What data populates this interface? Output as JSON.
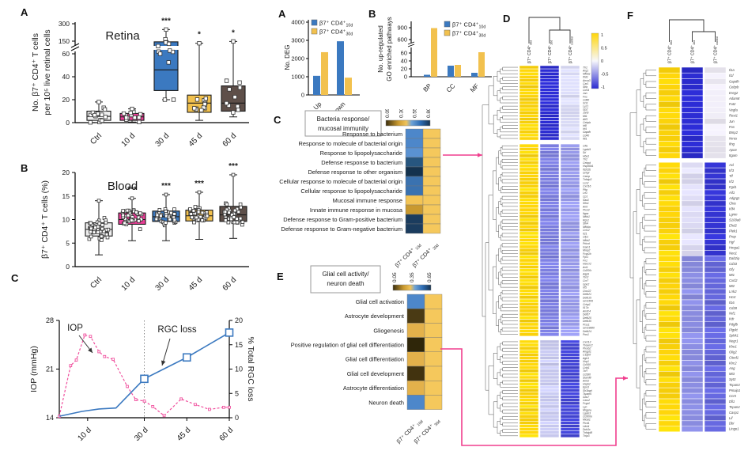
{
  "panel_labels": {
    "left_a": "A",
    "left_b": "B",
    "left_c": "C",
    "mid_a": "A",
    "mid_b": "B",
    "mid_c": "C",
    "mid_e": "E",
    "d": "D",
    "f": "F"
  },
  "colors": {
    "pink": "#ea3f97",
    "blue": "#3b79c0",
    "gold": "#f2c14e",
    "taupe": "#5e4f49",
    "ctrl": "#ededed",
    "heat_yellow": "#ffd60a",
    "connector_pink": "#f03f8e"
  },
  "chart_data": [
    {
      "id": "retina_box",
      "type": "box",
      "title": "Retina",
      "ylabel": [
        "No. β7⁺ CD4⁺ T cells",
        "per 10⁵ live retinal cells"
      ],
      "yticks": [
        0,
        20,
        40,
        60,
        150,
        300
      ],
      "axis_break": [
        60,
        150
      ],
      "categories": [
        "Ctrl",
        "10 d",
        "30 d",
        "45 d",
        "60 d"
      ],
      "significance": [
        "",
        "",
        "***",
        "*",
        "*"
      ],
      "box_colors": [
        "#ededed",
        "#ea3f97",
        "#3b79c0",
        "#f2c14e",
        "#5e4f49"
      ],
      "boxes": [
        {
          "lo": 0,
          "q1": 2,
          "med": 5.5,
          "q3": 10,
          "hi": 18
        },
        {
          "lo": 0.5,
          "q1": 2,
          "med": 5,
          "q3": 8,
          "hi": 12
        },
        {
          "lo": 20,
          "q1": 28,
          "med": 46,
          "q3": 145,
          "hi": 250
        },
        {
          "lo": 2,
          "q1": 9,
          "med": 17,
          "q3": 24,
          "hi": 135
        },
        {
          "lo": 5,
          "q1": 10,
          "med": 17,
          "q3": 32,
          "hi": 148
        }
      ],
      "n_points": [
        14,
        12,
        12,
        11,
        11
      ]
    },
    {
      "id": "blood_box",
      "type": "box",
      "title": "Blood",
      "ylabel": [
        "β7⁺ CD4⁺ T cells (%)"
      ],
      "yticks": [
        0,
        5,
        10,
        15,
        20
      ],
      "categories": [
        "Ctrl",
        "10 d",
        "30 d",
        "45 d",
        "60 d"
      ],
      "significance": [
        "",
        "***",
        "***",
        "***",
        "***"
      ],
      "box_colors": [
        "#ededed",
        "#ea3f97",
        "#3b79c0",
        "#f2c14e",
        "#5e4f49"
      ],
      "boxes": [
        {
          "lo": 2.5,
          "q1": 6.5,
          "med": 7.9,
          "q3": 9.3,
          "hi": 14
        },
        {
          "lo": 5.5,
          "q1": 9,
          "med": 10,
          "q3": 11.4,
          "hi": 14.5
        },
        {
          "lo": 5.5,
          "q1": 9.6,
          "med": 10.6,
          "q3": 11.8,
          "hi": 15.3
        },
        {
          "lo": 5.8,
          "q1": 9.7,
          "med": 10.8,
          "q3": 12,
          "hi": 15.8
        },
        {
          "lo": 6,
          "q1": 9.6,
          "med": 11,
          "q3": 12.8,
          "hi": 19.5
        }
      ],
      "n_points": [
        45,
        40,
        40,
        40,
        40
      ]
    },
    {
      "id": "iop_rgc",
      "type": "line",
      "left_axis": {
        "label": "IOP (mmHg)",
        "ticks": [
          14,
          21,
          28
        ],
        "range": [
          14,
          28
        ]
      },
      "right_axis": {
        "label": "% Total RGC loss",
        "ticks": [
          0,
          5,
          10,
          15,
          20
        ],
        "range": [
          0,
          20
        ]
      },
      "x_range": [
        0,
        60
      ],
      "x_ticks": [
        {
          "day": 10,
          "label": "10 d"
        },
        {
          "day": 30,
          "label": "30 d"
        },
        {
          "day": 45,
          "label": "45 d"
        },
        {
          "day": 60,
          "label": "60 d"
        }
      ],
      "vline_day": 30,
      "annotations": [
        {
          "text": "IOP"
        },
        {
          "text": "RGC loss"
        }
      ],
      "series": [
        {
          "name": "IOP",
          "axis": "left",
          "color": "#f0509e",
          "style": "dashed",
          "points": [
            [
              0,
              14.2
            ],
            [
              4,
              21.5
            ],
            [
              6,
              22.3
            ],
            [
              9,
              25.9
            ],
            [
              11,
              25.7
            ],
            [
              14,
              23.5
            ],
            [
              16,
              22.8
            ],
            [
              19,
              22.4
            ],
            [
              24,
              18.5
            ],
            [
              27,
              16.6
            ],
            [
              30,
              16.4
            ],
            [
              33,
              15.6
            ],
            [
              37,
              14.3
            ],
            [
              43,
              16.7
            ],
            [
              48,
              15.9
            ],
            [
              53,
              15.2
            ],
            [
              58,
              15.5
            ],
            [
              60,
              15.5
            ]
          ]
        },
        {
          "name": "RGC loss",
          "axis": "right",
          "color": "#3b79c0",
          "style": "solid",
          "marker_days": [
            30,
            45,
            60
          ],
          "points": [
            [
              0,
              0.3
            ],
            [
              8,
              1.3
            ],
            [
              14,
              1.8
            ],
            [
              20,
              2.0
            ],
            [
              30,
              8
            ],
            [
              45,
              12.4
            ],
            [
              60,
              17.5
            ]
          ]
        }
      ]
    },
    {
      "id": "deg_bar",
      "type": "bar",
      "ylabel": [
        "No. DEG"
      ],
      "yticks": [
        0,
        1000,
        2000,
        3000,
        4000
      ],
      "categories": [
        "Up",
        "Down"
      ],
      "legend": [
        {
          "color": "#3b79c0",
          "base": "β7⁺ CD4⁺",
          "sub": "10d"
        },
        {
          "color": "#f2c14e",
          "base": "β7⁺ CD4⁺",
          "sub": "30d"
        }
      ],
      "series": [
        {
          "name": "b7 CD4 10d",
          "color": "#3b79c0",
          "values": [
            1050,
            2950
          ]
        },
        {
          "name": "b7 CD4 30d",
          "color": "#f2c14e",
          "values": [
            2350,
            950
          ]
        }
      ]
    },
    {
      "id": "go_bar",
      "type": "bar",
      "ylabel": [
        "No. up-regulated",
        "GO enriched pathways"
      ],
      "yticks": [
        0,
        20,
        40,
        60,
        600,
        900
      ],
      "axis_break": [
        70,
        600
      ],
      "categories": [
        "BP",
        "CC",
        "MF"
      ],
      "legend": [
        {
          "color": "#3b79c0",
          "base": "β7⁺ CD4⁺",
          "sub": "10d"
        },
        {
          "color": "#f2c14e",
          "base": "β7⁺ CD4⁺",
          "sub": "30d"
        }
      ],
      "series": [
        {
          "name": "b7 CD4 10d",
          "color": "#3b79c0",
          "values": [
            5,
            28,
            10
          ]
        },
        {
          "name": "b7 CD4 30d",
          "color": "#f2c14e",
          "values": [
            890,
            30,
            62
          ]
        }
      ]
    },
    {
      "id": "bacteria_heatmap",
      "type": "heatmap",
      "title": [
        "Bacteria response/",
        "mucosal immunity"
      ],
      "colorbar_ticks": [
        "0.05",
        "0.30",
        "0.55",
        "0.80"
      ],
      "columns": [
        {
          "base": "β7⁺ CD4⁺ ",
          "sub": "10d"
        },
        {
          "base": "β7⁺ CD4⁺ ",
          "sub": "30d"
        }
      ],
      "col2_color": "#f5c85c",
      "rows": [
        {
          "label": "Response to bacterium",
          "color": "#4d87ca"
        },
        {
          "label": "Response to molecule of bacterial origin",
          "color": "#4d87ca"
        },
        {
          "label": "Response to lipopolysaccharide",
          "color": "#5a92d2"
        },
        {
          "label": "Defense response to bacterium",
          "color": "#27567f"
        },
        {
          "label": "Defense response to other organism",
          "color": "#14324e"
        },
        {
          "label": "Cellular response to molecule of bacterial origin",
          "color": "#3a72b0"
        },
        {
          "label": "Cellular response to lipopolysaccharide",
          "color": "#3a72b0"
        },
        {
          "label": "Mucosal immune response",
          "color": "#f3c455"
        },
        {
          "label": "Innate immune response in mucosa",
          "color": "#c9992f"
        },
        {
          "label": "Defense response to Gram-positive bacterium",
          "color": "#1b3c5e"
        },
        {
          "label": "Defense response to Gram-negative bacterium",
          "color": "#1b3c5e"
        }
      ]
    },
    {
      "id": "glial_heatmap",
      "type": "heatmap",
      "title": [
        "Glial cell activity/",
        "neuron death"
      ],
      "colorbar_ticks": [
        "0.05",
        "0.35",
        "0.65"
      ],
      "columns": [
        {
          "base": "β7⁺ CD4⁺ ",
          "sub": "10d"
        },
        {
          "base": "β7⁺ CD4⁺ ",
          "sub": "30d"
        }
      ],
      "col2_color": "#f5c85c",
      "rows": [
        {
          "label": "Glial cell activation",
          "color": "#4d87ca"
        },
        {
          "label": "Astrocyte development",
          "color": "#4a3a14"
        },
        {
          "label": "Gliogenesis",
          "color": "#e3b14b"
        },
        {
          "label": "Positive regulation of glial cell differentiation",
          "color": "#2f2609"
        },
        {
          "label": "Glial cell differentiation",
          "color": "#e3b14b"
        },
        {
          "label": "Glial cell development",
          "color": "#42330f"
        },
        {
          "label": "Astrocyte differentiation",
          "color": "#e3b14b"
        },
        {
          "label": "Neuron death",
          "color": "#4d87ca"
        }
      ]
    },
    {
      "id": "heatmap_D",
      "type": "heatmap",
      "columns": [
        {
          "base": "β7⁺ CD4⁺",
          "sub": "30d"
        },
        {
          "base": "β7⁺ CD4⁺",
          "sub": "10d"
        },
        {
          "base": "β7⁺ CD4⁺",
          "sub": "control"
        }
      ],
      "colorbar_ticks": [
        "1",
        "0.5",
        "0",
        "-0.5",
        "-1"
      ],
      "blocks": [
        {
          "colors": [
            "#ffd60a",
            "#2c2cd2",
            "#d7d8f3"
          ],
          "genes": [
            "Tlr1",
            "Arg1",
            "Nfkbiz",
            "Ifrd1",
            "Anxa3",
            "Car1",
            "Stfa",
            "Cd14",
            "Jun",
            "Fos",
            "Cd80",
            "Xcl1",
            "Lyz1",
            "Gp2",
            "Junb",
            "Mt1",
            "Atf3",
            "Cebpb",
            "Irf8",
            "Irf4",
            "Gapdh",
            "Cd40",
            "Ifit1"
          ]
        },
        {
          "colors": [
            "#ffd60a",
            "#7c7ee0",
            "#9799e8"
          ],
          "genes": [
            "Clfa",
            "Lgals9",
            "Srl",
            "Hba1",
            "Tlr2",
            "Cebpd",
            "Hsp90b1",
            "Ifi202b",
            "Grhpr",
            "Camp",
            "Tnfaip3",
            "Lcn2",
            "Cxcl16",
            "Pltp",
            "Lrf1",
            "Cp1",
            "Saa1",
            "Slfn1",
            "Arnt",
            "Plxn3",
            "Itgax",
            "Nfkb1",
            "Rgs1",
            "Stk4",
            "Nfkbia",
            "Ccl12",
            "Il21",
            "Cfp1",
            "Nfkb2",
            "Prkcd",
            "Icam1",
            "Mmp2",
            "Fcgr2b",
            "Fpr1",
            "Fn1",
            "Havcr2",
            "Axl1",
            "Cd200r",
            "Aqp9",
            "Tcn2",
            "Ccr7",
            "Gpn2",
            "Irf5",
            "Cwc22",
            "Defb21",
            "Defb15",
            "Gm1506",
            "Crisp1",
            "Il17a",
            "Arrdc4",
            "Defb7",
            "Defb20",
            "Defb30",
            "Prss1",
            "Gm19880",
            "Defb24",
            "Pon1"
          ]
        },
        {
          "colors": [
            "#ffd60a",
            "#c9caf1",
            "#4345d5"
          ],
          "genes": [
            "Cxcl13",
            "Tceanc2",
            "Plxnb2",
            "Angpt1",
            "C1qtnf",
            "Agtr1",
            "Xirp1",
            "Cd160",
            "Ccbl1",
            "Tcf7",
            "Cd180",
            "Slamf8",
            "Arnt2",
            "Hspb2",
            "Epn3",
            "Sh3bgrl",
            "Tspan6",
            "Gas7",
            "Cars2",
            "Fcgr4",
            "Lyn",
            "Mrgpra",
            "Lgals3",
            "Cd300e",
            "Mical1",
            "Plcd1",
            "Lilrb4",
            "Ddx3x",
            "Tnfaip8l",
            "Tnip3"
          ]
        }
      ]
    },
    {
      "id": "heatmap_F",
      "type": "heatmap",
      "columns": [
        {
          "base": "β7⁺ CD4⁺",
          "sub": "30d"
        },
        {
          "base": "β7⁺ CD4⁺",
          "sub": "10d"
        },
        {
          "base": "β7⁺ CD4⁺",
          "sub": "control"
        }
      ],
      "blocks": [
        {
          "colors": [
            "#ffd60a",
            "#2b2bd0",
            "#e9e6f0"
          ],
          "genes": [
            "Il1a",
            "Il1f",
            "Gapdh",
            "Cebpb",
            "Ereg2",
            "Adam8",
            "Fut2",
            "Vegfa",
            "Rest1",
            "Jun",
            "Fos",
            "Bmp2",
            "Nrros",
            "Ifng",
            "Apoe",
            "Itgam"
          ]
        },
        {
          "colors": [
            "#ffd60a",
            "#dedcf5",
            "#3434d2"
          ],
          "genes": [
            "Axl",
            "Irf3",
            "Tlf",
            "Irf2",
            "Fgd1",
            "Aif1",
            "Adgrg1",
            "Chia",
            "Klf4",
            "Lgmn",
            "S100a8",
            "Ehd2",
            "Plek1",
            "Prep",
            "Hgf",
            "Hmga1",
            "Neo1"
          ]
        },
        {
          "colors": [
            "#ffd60a",
            "#8b8de2",
            "#6466da"
          ],
          "genes": [
            "Dab2ip",
            "Cd33",
            "Gfy",
            "Mt1",
            "Cxcl2",
            "Mt2",
            "Lrrk2",
            "Hcst",
            "Il16",
            "Cd28",
            "Nrf1",
            "Kdr",
            "Pdgfb",
            "Plgrkt",
            "Sphk1",
            "Negr1",
            "Klre1",
            "Olig2",
            "Cited1",
            "Klrc2",
            "Ang",
            "Mt3",
            "Syt3",
            "Tspan3",
            "Pmaip1",
            "Ccr5",
            "Dll1",
            "Tspan4",
            "Casp1",
            "Lif",
            "Dbi",
            "Lingo1"
          ]
        }
      ]
    }
  ]
}
